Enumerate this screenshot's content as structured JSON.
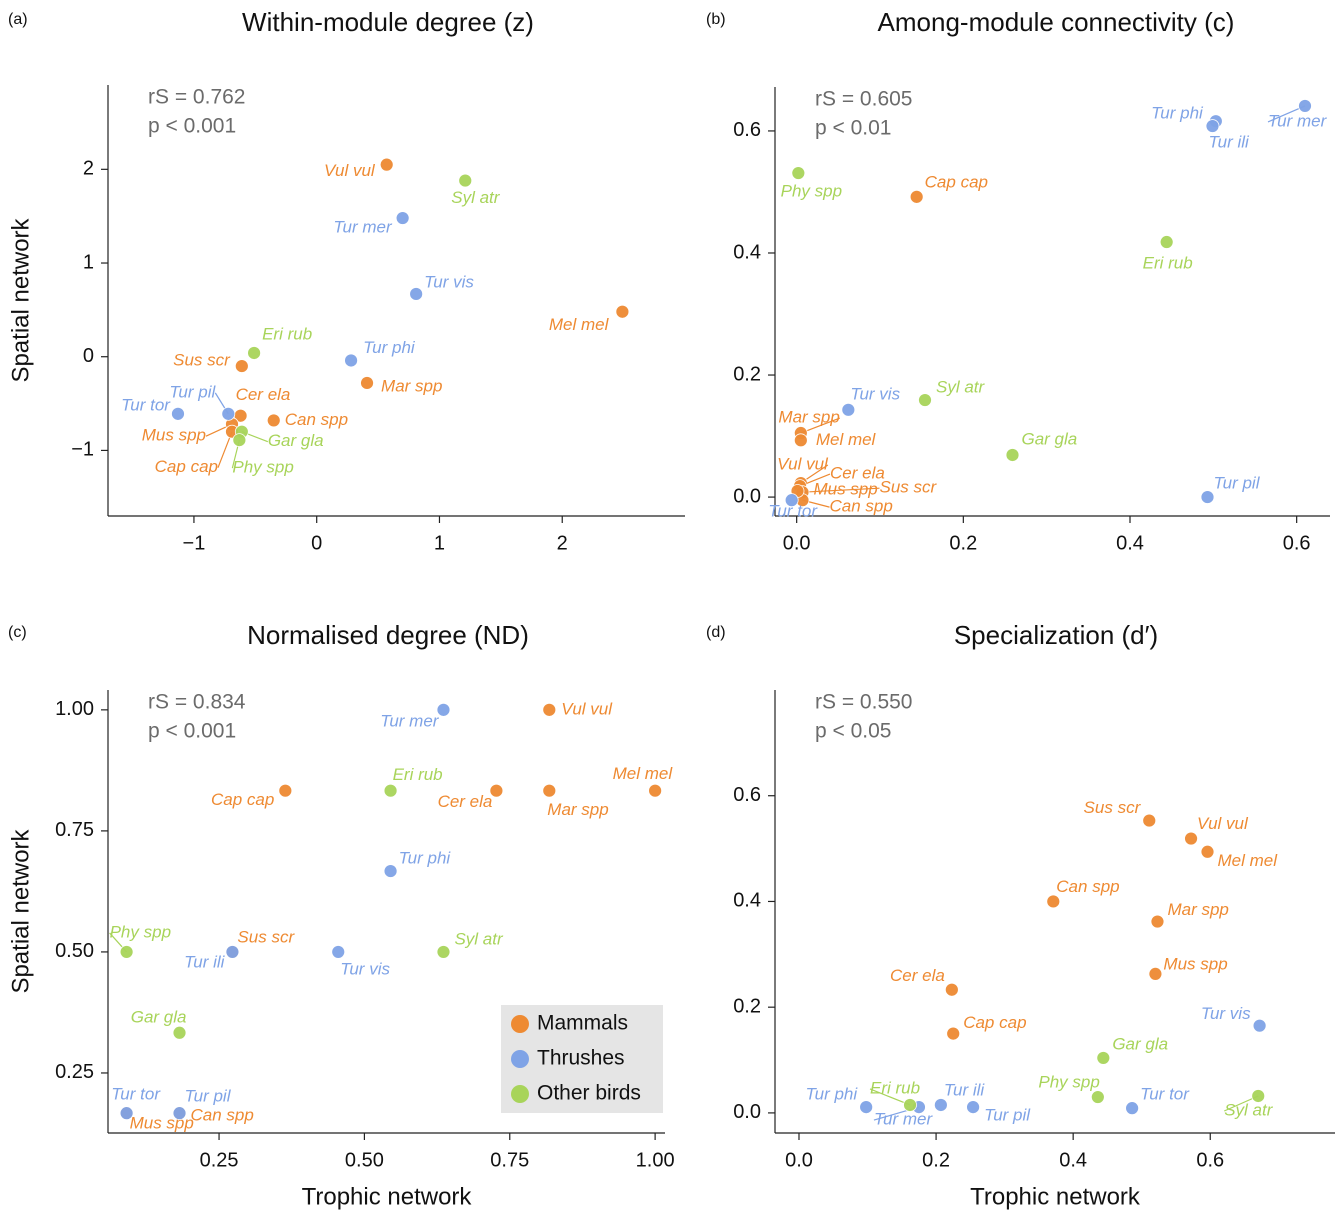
{
  "chart_data": [
    {
      "type": "scatter",
      "panel": "(a)",
      "title": "Within-module degree (z)",
      "annotations": [
        "rS = 0.762",
        "p < 0.001"
      ],
      "y_label": "Spatial network",
      "xlim": [
        -1.7,
        3.0
      ],
      "ylim": [
        -1.7,
        2.9
      ],
      "xticks": [
        {
          "value": -1,
          "label": "−1"
        },
        0,
        1,
        2
      ],
      "yticks": [
        {
          "value": -1,
          "label": "−1"
        },
        0,
        1,
        2
      ],
      "series": [
        {
          "color": "#ee8a32",
          "labels": [
            "Vul vul",
            "Mel mel",
            "Mar spp",
            "Sus scr",
            "Can spp",
            "Cer ela",
            "Mus spp",
            "Cap cap"
          ],
          "x": [
            0.57,
            2.49,
            0.41,
            -0.61,
            -0.35,
            -0.62,
            -0.69,
            -0.69
          ],
          "values": [
            2.05,
            0.48,
            -0.28,
            -0.1,
            -0.68,
            -0.63,
            -0.72,
            -0.8
          ]
        },
        {
          "color": "#7fa3e6",
          "labels": [
            "Tur mer",
            "Tur vis",
            "Tur phi",
            "Tur pil",
            "Tur tor"
          ],
          "x": [
            0.7,
            0.81,
            0.28,
            -0.72,
            -1.13
          ],
          "values": [
            1.48,
            0.67,
            -0.04,
            -0.61,
            -0.61
          ]
        },
        {
          "color": "#a8d45a",
          "labels": [
            "Syl atr",
            "Eri rub",
            "Gar gla",
            "Phy spp"
          ],
          "x": [
            1.21,
            -0.51,
            -0.61,
            -0.63
          ],
          "values": [
            1.88,
            0.04,
            -0.8,
            -0.89
          ]
        }
      ]
    },
    {
      "type": "scatter",
      "panel": "(b)",
      "title": "Among-module connectivity (c)",
      "annotations": [
        "rS = 0.605",
        "p < 0.01"
      ],
      "xlim": [
        -0.026,
        0.64
      ],
      "ylim": [
        -0.031,
        0.672
      ],
      "xticks": [
        {
          "value": 0,
          "label": "0.0"
        },
        0.2,
        0.4,
        0.6
      ],
      "yticks": [
        {
          "value": 0,
          "label": "0.0"
        },
        0.2,
        0.4,
        0.6
      ],
      "series": [
        {
          "color": "#ee8a32",
          "labels": [
            "Cap cap",
            "Mar spp",
            "Mel mel",
            "Vul vul",
            "Cer ela",
            "Sus scr",
            "Can spp",
            "Mus spp"
          ],
          "x": [
            0.144,
            0.005,
            0.005,
            0.005,
            0.004,
            0.007,
            0.007,
            0.001
          ],
          "values": [
            0.492,
            0.105,
            0.093,
            0.023,
            0.018,
            0.008,
            -0.005,
            0.01
          ]
        },
        {
          "color": "#7fa3e6",
          "labels": [
            "Tur phi",
            "Tur ili",
            "Tur mer",
            "Tur vis",
            "Tur pil",
            "Tur tor"
          ],
          "x": [
            0.503,
            0.499,
            0.61,
            0.062,
            0.493,
            -0.006
          ],
          "values": [
            0.616,
            0.608,
            0.641,
            0.143,
            0.0,
            -0.005
          ]
        },
        {
          "color": "#a8d45a",
          "labels": [
            "Phy spp",
            "Eri rub",
            "Syl atr",
            "Gar gla"
          ],
          "x": [
            0.002,
            0.444,
            0.154,
            0.259
          ],
          "values": [
            0.531,
            0.418,
            0.159,
            0.069
          ]
        }
      ]
    },
    {
      "type": "scatter",
      "panel": "(c)",
      "title": "Normalised degree (ND)",
      "annotations": [
        "rS = 0.834",
        "p < 0.001"
      ],
      "x_label": "Trophic network",
      "y_label": "Spatial network",
      "xlim": [
        0.059,
        1.017
      ],
      "ylim": [
        0.126,
        1.041
      ],
      "xticks": [
        0.25,
        {
          "value": 0.5,
          "label": "0.50"
        },
        0.75,
        {
          "value": 1,
          "label": "1.00"
        }
      ],
      "yticks": [
        0.25,
        {
          "value": 0.5,
          "label": "0.50"
        },
        0.75,
        {
          "value": 1,
          "label": "1.00"
        }
      ],
      "legend": "lower right",
      "series": [
        {
          "name": "Mammals",
          "color": "#ee8a32",
          "labels": [
            "Vul vul",
            "Mel mel",
            "Mar spp",
            "Cer ela",
            "Cap cap",
            "Sus scr",
            "Can spp",
            "Mus spp"
          ],
          "x": [
            0.818,
            1.0,
            0.818,
            0.727,
            0.364,
            0.273,
            0.182,
            0.091
          ],
          "values": [
            1.0,
            0.833,
            0.833,
            0.833,
            0.833,
            0.5,
            0.167,
            0.167
          ]
        },
        {
          "name": "Thrushes",
          "color": "#7fa3e6",
          "labels": [
            "Tur mer",
            "Tur phi",
            "Tur vis",
            "Tur ili",
            "Tur pil",
            "Tur tor"
          ],
          "x": [
            0.636,
            0.545,
            0.455,
            0.273,
            0.182,
            0.091
          ],
          "values": [
            1.0,
            0.667,
            0.5,
            0.5,
            0.167,
            0.167
          ]
        },
        {
          "name": "Other birds",
          "color": "#a8d45a",
          "labels": [
            "Eri rub",
            "Syl atr",
            "Phy spp",
            "Gar gla"
          ],
          "x": [
            0.545,
            0.636,
            0.091,
            0.182
          ],
          "values": [
            0.833,
            0.5,
            0.5,
            0.333
          ]
        }
      ]
    },
    {
      "type": "scatter",
      "panel": "(d)",
      "title": "Specialization (d′)",
      "annotations": [
        "rS = 0.550",
        "p < 0.05"
      ],
      "x_label": "Trophic network",
      "xlim": [
        -0.035,
        0.782
      ],
      "ylim": [
        -0.038,
        0.8
      ],
      "xticks": [
        {
          "value": 0,
          "label": "0.0"
        },
        0.2,
        0.4,
        0.6
      ],
      "yticks": [
        {
          "value": 0,
          "label": "0.0"
        },
        0.2,
        0.4,
        0.6
      ],
      "series": [
        {
          "color": "#ee8a32",
          "labels": [
            "Sus scr",
            "Vul vul",
            "Mel mel",
            "Can spp",
            "Mar spp",
            "Mus spp",
            "Cer ela",
            "Cap cap"
          ],
          "x": [
            0.511,
            0.572,
            0.596,
            0.371,
            0.523,
            0.52,
            0.223,
            0.225
          ],
          "values": [
            0.553,
            0.519,
            0.494,
            0.4,
            0.362,
            0.263,
            0.233,
            0.15
          ]
        },
        {
          "color": "#7fa3e6",
          "labels": [
            "Tur vis",
            "Tur tor",
            "Tur phi",
            "Tur mer",
            "Tur ili",
            "Tur pil"
          ],
          "x": [
            0.672,
            0.486,
            0.098,
            0.175,
            0.207,
            0.254
          ],
          "values": [
            0.165,
            0.009,
            0.011,
            0.011,
            0.015,
            0.011
          ]
        },
        {
          "color": "#a8d45a",
          "labels": [
            "Gar gla",
            "Phy spp",
            "Syl atr",
            "Eri rub"
          ],
          "x": [
            0.444,
            0.436,
            0.67,
            0.162
          ],
          "values": [
            0.104,
            0.03,
            0.032,
            0.015
          ]
        }
      ]
    }
  ]
}
